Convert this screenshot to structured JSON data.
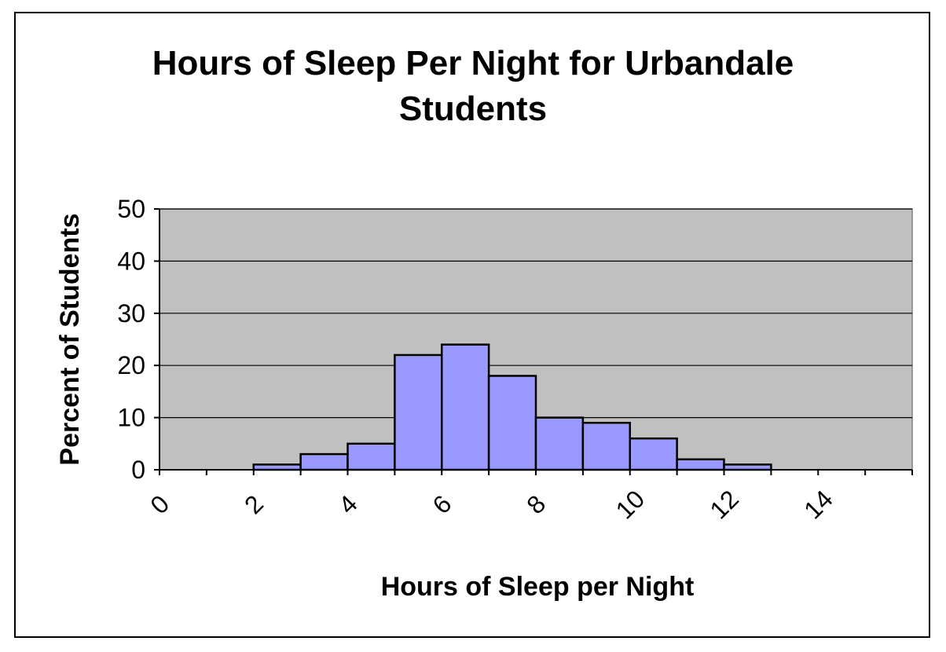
{
  "chart_data": {
    "type": "bar",
    "title_lines": [
      "Hours of Sleep Per Night for Urbandale",
      "Students"
    ],
    "xlabel": "Hours of Sleep per Night",
    "ylabel": "Percent of Students",
    "ylim": [
      0,
      50
    ],
    "xlim": [
      0,
      16
    ],
    "y_ticks": [
      0,
      10,
      20,
      30,
      40,
      50
    ],
    "x_ticks": [
      0,
      2,
      4,
      6,
      8,
      10,
      12,
      14
    ],
    "bins": [
      {
        "start": 2,
        "end": 3,
        "value": 1
      },
      {
        "start": 3,
        "end": 4,
        "value": 3
      },
      {
        "start": 4,
        "end": 5,
        "value": 5
      },
      {
        "start": 5,
        "end": 6,
        "value": 22
      },
      {
        "start": 6,
        "end": 7,
        "value": 24
      },
      {
        "start": 7,
        "end": 8,
        "value": 18
      },
      {
        "start": 8,
        "end": 9,
        "value": 10
      },
      {
        "start": 9,
        "end": 10,
        "value": 9
      },
      {
        "start": 10,
        "end": 11,
        "value": 6
      },
      {
        "start": 11,
        "end": 12,
        "value": 2
      },
      {
        "start": 12,
        "end": 13,
        "value": 1
      }
    ],
    "grid": true,
    "legend": "none",
    "colors": {
      "bar": "#9999ff",
      "plot_background": "#c0c0c0",
      "gridline": "#000000"
    }
  }
}
